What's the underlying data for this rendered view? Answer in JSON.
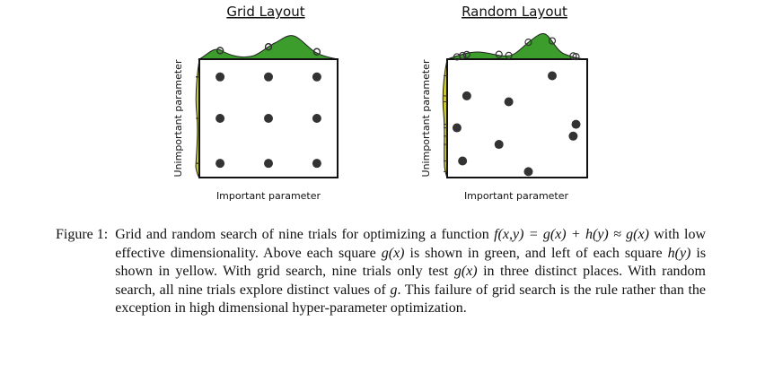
{
  "figure": {
    "panels": [
      {
        "title": "Grid Layout",
        "xlabel": "Important parameter",
        "ylabel": "Unimportant parameter",
        "points": [
          [
            0.15,
            0.85
          ],
          [
            0.5,
            0.85
          ],
          [
            0.85,
            0.85
          ],
          [
            0.15,
            0.5
          ],
          [
            0.5,
            0.5
          ],
          [
            0.85,
            0.5
          ],
          [
            0.15,
            0.12
          ],
          [
            0.5,
            0.12
          ],
          [
            0.85,
            0.12
          ]
        ]
      },
      {
        "title": "Random Layout",
        "xlabel": "Important parameter",
        "ylabel": "Unimportant parameter",
        "points": [
          [
            0.14,
            0.69
          ],
          [
            0.44,
            0.64
          ],
          [
            0.75,
            0.86
          ],
          [
            0.92,
            0.45
          ],
          [
            0.07,
            0.42
          ],
          [
            0.37,
            0.28
          ],
          [
            0.11,
            0.14
          ],
          [
            0.58,
            0.05
          ],
          [
            0.9,
            0.35
          ]
        ]
      }
    ],
    "colors": {
      "g_curve": "#3c9c2c",
      "h_curve": "#c8c832",
      "point": "#333333",
      "marker": "#333333"
    }
  },
  "caption": {
    "label": "Figure 1:",
    "t1": "Grid and random search of nine trials for optimizing a function",
    "f": "f(x,y) = g(x) + h(y) ≈ g(x)",
    "t2": "with low effective dimensionality. Above each square",
    "gx1": "g(x)",
    "t3": "is shown in green, and left of each square",
    "hy": "h(y)",
    "t4": "is shown in yellow. With grid search, nine trials only test",
    "gx2": "g(x)",
    "t5": "in three distinct places. With random search, all nine trials explore distinct values of",
    "g": "g",
    "t6": ". This failure of grid search is the rule rather than the exception in high dimensional hyper-parameter optimization."
  }
}
